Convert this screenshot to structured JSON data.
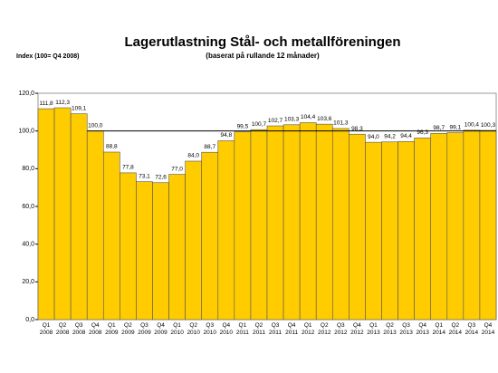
{
  "chart_data": {
    "type": "bar",
    "title": "Lagerutlastning Stål- och metallföreningen",
    "subtitle": "(baserat på rullande 12 månader)",
    "y_label": "Index (100= Q4 2008)",
    "categories": [
      "Q1 2008",
      "Q2 2008",
      "Q3 2008",
      "Q4 2008",
      "Q1 2009",
      "Q2 2009",
      "Q3 2009",
      "Q4 2009",
      "Q1 2010",
      "Q2 2010",
      "Q3 2010",
      "Q4 2010",
      "Q1 2011",
      "Q2 2011",
      "Q3 2011",
      "Q4 2011",
      "Q1 2012",
      "Q2 2012",
      "Q3 2012",
      "Q4 2012",
      "Q1 2013",
      "Q2 2013",
      "Q3 2013",
      "Q4 2013",
      "Q1 2014",
      "Q2 2014",
      "Q3 2014",
      "Q4 2014"
    ],
    "values": [
      111.8,
      112.3,
      109.1,
      100.0,
      88.8,
      77.8,
      73.1,
      72.6,
      77.0,
      84.0,
      88.7,
      94.8,
      99.5,
      100.7,
      102.7,
      103.3,
      104.4,
      103.6,
      101.3,
      98.3,
      94.0,
      94.2,
      94.4,
      96.3,
      98.7,
      99.1,
      100.4,
      100.3
    ],
    "value_labels": [
      "111,8",
      "112,3",
      "109,1",
      "100,0",
      "88,8",
      "77,8",
      "73,1",
      "72,6",
      "77,0",
      "84,0",
      "88,7",
      "94,8",
      "99,5",
      "100,7",
      "102,7",
      "103,3",
      "104,4",
      "103,6",
      "101,3",
      "98,3",
      "94,0",
      "94,2",
      "94,4",
      "96,3",
      "98,7",
      "99,1",
      "100,4",
      "100,3"
    ],
    "color": "#ffcc00",
    "reference_line": 100,
    "ylim": [
      0,
      120
    ],
    "yticks": [
      {
        "value": 0,
        "label": "0,0"
      },
      {
        "value": 20,
        "label": "20,0"
      },
      {
        "value": 40,
        "label": "40,0"
      },
      {
        "value": 60,
        "label": "60,0"
      },
      {
        "value": 80,
        "label": "80,0"
      },
      {
        "value": 100,
        "label": "100,0"
      },
      {
        "value": 120,
        "label": "120,0"
      }
    ]
  }
}
